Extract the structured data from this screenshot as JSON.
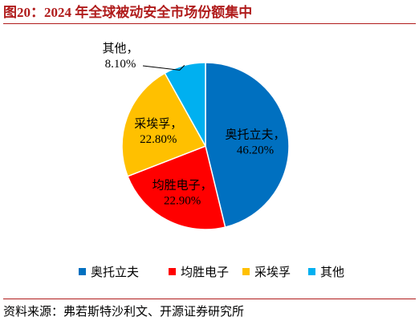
{
  "figure": {
    "title": "图20：2024 年全球被动安全市场份额集中",
    "source": "资料来源：弗若斯特沙利文、开源证券研究所"
  },
  "chart_data": {
    "type": "pie",
    "title": "",
    "legend_position": "bottom",
    "slices": [
      {
        "label": "奥托立夫",
        "value": 46.2,
        "value_label": "46.20%",
        "color": "#0070c0"
      },
      {
        "label": "均胜电子",
        "value": 22.9,
        "value_label": "22.90%",
        "color": "#ff0000"
      },
      {
        "label": "采埃孚",
        "value": 22.8,
        "value_label": "22.80%",
        "color": "#ffc000"
      },
      {
        "label": "其他",
        "value": 8.1,
        "value_label": "8.10%",
        "color": "#00b0f0"
      }
    ]
  }
}
